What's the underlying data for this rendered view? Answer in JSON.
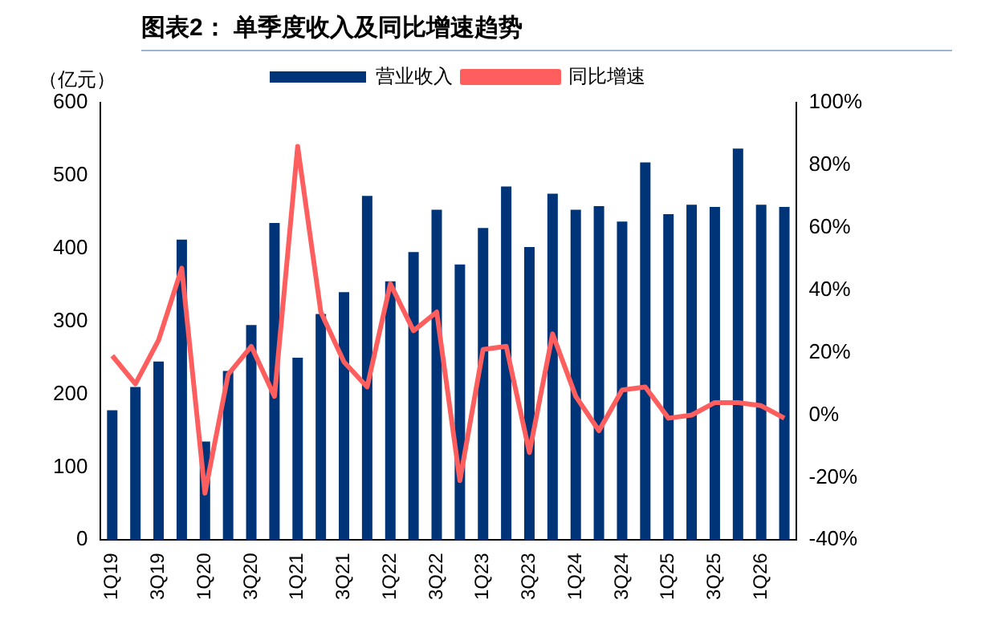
{
  "chart_data": {
    "type": "bar",
    "title": "图表2：  单季度收入及同比增速趋势",
    "ylabel": "（亿元）",
    "categories": [
      "1Q19",
      null,
      "3Q19",
      null,
      "1Q20",
      null,
      "3Q20",
      null,
      "1Q21",
      null,
      "3Q21",
      null,
      "1Q22",
      null,
      "3Q22",
      null,
      "1Q23",
      null,
      "3Q23",
      null,
      "1Q24",
      null,
      "3Q24",
      null,
      "1Q25",
      null,
      "3Q25",
      null,
      "1Q26",
      null
    ],
    "series": [
      {
        "name": "营业收入",
        "color": "#003478",
        "values": [
          178,
          210,
          245,
          412,
          135,
          232,
          295,
          435,
          250,
          310,
          340,
          472,
          355,
          395,
          453,
          378,
          428,
          485,
          402,
          475,
          453,
          458,
          437,
          518,
          447,
          460,
          457,
          537,
          460,
          457
        ]
      },
      {
        "name": "同比增速",
        "type": "line",
        "axis": "y2",
        "color": "#ff5e5e",
        "values": [
          19,
          10,
          24,
          47,
          -25,
          13,
          22,
          6,
          86,
          33,
          17,
          9,
          42,
          27,
          33,
          -21,
          21,
          22,
          -12,
          26,
          6,
          -5,
          8,
          9,
          -1,
          0,
          4,
          4,
          3,
          -1
        ]
      }
    ],
    "ylim": [
      0,
      600
    ],
    "yticks": [
      0,
      100,
      200,
      300,
      400,
      500,
      600
    ],
    "y2lim": [
      -40,
      100
    ],
    "y2ticks": [
      {
        "value": -40,
        "label": "-40%"
      },
      {
        "value": -20,
        "label": "-20%"
      },
      {
        "value": 0,
        "label": "0%"
      },
      {
        "value": 20,
        "label": "20%"
      },
      {
        "value": 40,
        "label": "40%"
      },
      {
        "value": 60,
        "label": "60%"
      },
      {
        "value": 80,
        "label": "80%"
      },
      {
        "value": 100,
        "label": "100%"
      }
    ],
    "legend": "top",
    "grid": false,
    "marker": "none"
  }
}
